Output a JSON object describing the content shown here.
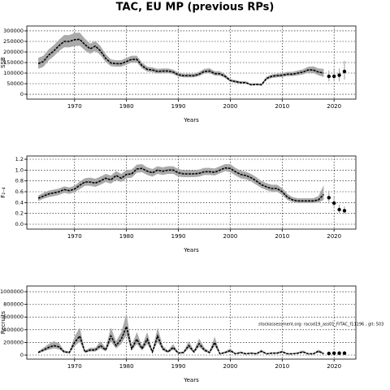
{
  "chart_data": [
    {
      "type": "line",
      "title": "TAC, EU MP (previous RPs)",
      "ylabel": "SSB",
      "xlabel": "Years",
      "xlim": [
        1960.8,
        2024.2
      ],
      "xticks": [
        1970,
        1980,
        1990,
        2000,
        2010,
        2020
      ],
      "ylim": [
        -23000,
        323000
      ],
      "yticks": [
        0,
        50000,
        100000,
        150000,
        200000,
        250000,
        300000
      ],
      "grid": true,
      "color": "#000000",
      "band_color": "#aaaaaa",
      "x": [
        1963,
        1964,
        1965,
        1966,
        1967,
        1968,
        1969,
        1970,
        1971,
        1972,
        1973,
        1974,
        1975,
        1976,
        1977,
        1978,
        1979,
        1980,
        1981,
        1982,
        1983,
        1984,
        1985,
        1986,
        1987,
        1988,
        1989,
        1990,
        1991,
        1992,
        1993,
        1994,
        1995,
        1996,
        1997,
        1998,
        1999,
        2000,
        2001,
        2002,
        2003,
        2004,
        2005,
        2006,
        2007,
        2008,
        2009,
        2010,
        2011,
        2012,
        2013,
        2014,
        2015,
        2016,
        2017,
        2018
      ],
      "values": [
        145000,
        155000,
        185000,
        205000,
        230000,
        250000,
        250000,
        258000,
        260000,
        235000,
        215000,
        228000,
        205000,
        170000,
        148000,
        145000,
        145000,
        155000,
        165000,
        165000,
        135000,
        118000,
        115000,
        108000,
        110000,
        110000,
        105000,
        92000,
        88000,
        88000,
        88000,
        95000,
        108000,
        110000,
        98000,
        97000,
        85000,
        65000,
        60000,
        55000,
        55000,
        45000,
        47000,
        45000,
        75000,
        85000,
        88000,
        90000,
        95000,
        95000,
        100000,
        105000,
        115000,
        115000,
        105000,
        100000
      ],
      "lower": [
        120000,
        130000,
        160000,
        180000,
        205000,
        222000,
        222000,
        228000,
        230000,
        208000,
        192000,
        205000,
        185000,
        152000,
        133000,
        131000,
        131000,
        140000,
        150000,
        150000,
        122000,
        107000,
        105000,
        98000,
        100000,
        100000,
        95000,
        83000,
        80000,
        80000,
        80000,
        86000,
        98000,
        100000,
        89000,
        88000,
        77000,
        59000,
        54000,
        50000,
        50000,
        41000,
        43000,
        41000,
        68000,
        77000,
        80000,
        82000,
        86000,
        86000,
        90000,
        94000,
        102000,
        100000,
        90000,
        82000
      ],
      "upper": [
        172000,
        182000,
        212000,
        232000,
        258000,
        280000,
        280000,
        290000,
        292000,
        263000,
        240000,
        252000,
        228000,
        190000,
        165000,
        161000,
        161000,
        172000,
        182000,
        182000,
        150000,
        131000,
        127000,
        120000,
        122000,
        122000,
        117000,
        102000,
        97000,
        97000,
        97000,
        106000,
        120000,
        123000,
        109000,
        108000,
        95000,
        72000,
        67000,
        61000,
        61000,
        50000,
        52000,
        50000,
        83000,
        94000,
        97000,
        100000,
        106000,
        106000,
        112000,
        118000,
        130000,
        132000,
        122000,
        120000
      ],
      "points": {
        "x": [
          2019,
          2020,
          2021,
          2022
        ],
        "values": [
          85000,
          85000,
          90000,
          108000
        ],
        "lower": [
          62000,
          60000,
          62000,
          70000
        ],
        "upper": [
          112000,
          115000,
          122000,
          158000
        ]
      }
    },
    {
      "type": "line",
      "ylabel": "F₂₋₄",
      "xlabel": "Years",
      "xlim": [
        1960.8,
        2024.2
      ],
      "xticks": [
        1970,
        1980,
        1990,
        2000,
        2010,
        2020
      ],
      "ylim": [
        -0.09,
        1.26
      ],
      "yticks": [
        {
          "value": 0,
          "label": "0.0"
        },
        0.2,
        0.4,
        0.6,
        0.8,
        {
          "value": 1,
          "label": "1.0"
        },
        1.2
      ],
      "grid": true,
      "color": "#000000",
      "band_color": "#aaaaaa",
      "x": [
        1963,
        1964,
        1965,
        1966,
        1967,
        1968,
        1969,
        1970,
        1971,
        1972,
        1973,
        1974,
        1975,
        1976,
        1977,
        1978,
        1979,
        1980,
        1981,
        1982,
        1983,
        1984,
        1985,
        1986,
        1987,
        1988,
        1989,
        1990,
        1991,
        1992,
        1993,
        1994,
        1995,
        1996,
        1997,
        1998,
        1999,
        2000,
        2001,
        2002,
        2003,
        2004,
        2005,
        2006,
        2007,
        2008,
        2009,
        2010,
        2011,
        2012,
        2013,
        2014,
        2015,
        2016,
        2017,
        2018
      ],
      "values": [
        0.48,
        0.52,
        0.56,
        0.58,
        0.6,
        0.64,
        0.62,
        0.65,
        0.72,
        0.78,
        0.78,
        0.76,
        0.8,
        0.85,
        0.82,
        0.9,
        0.85,
        0.92,
        0.93,
        1.02,
        1.03,
        0.98,
        0.95,
        1.0,
        0.98,
        1.0,
        1.0,
        0.95,
        0.93,
        0.93,
        0.93,
        0.94,
        0.97,
        0.97,
        0.96,
        1.0,
        1.04,
        1.03,
        0.97,
        0.92,
        0.9,
        0.86,
        0.8,
        0.73,
        0.69,
        0.66,
        0.66,
        0.6,
        0.5,
        0.45,
        0.43,
        0.43,
        0.43,
        0.43,
        0.45,
        0.55
      ],
      "lower": [
        0.43,
        0.47,
        0.5,
        0.52,
        0.54,
        0.58,
        0.56,
        0.59,
        0.65,
        0.71,
        0.71,
        0.69,
        0.73,
        0.78,
        0.75,
        0.82,
        0.78,
        0.85,
        0.86,
        0.95,
        0.96,
        0.91,
        0.88,
        0.93,
        0.91,
        0.93,
        0.93,
        0.88,
        0.87,
        0.87,
        0.87,
        0.88,
        0.91,
        0.91,
        0.9,
        0.94,
        0.98,
        0.96,
        0.9,
        0.85,
        0.83,
        0.79,
        0.73,
        0.67,
        0.63,
        0.6,
        0.6,
        0.54,
        0.45,
        0.41,
        0.39,
        0.39,
        0.39,
        0.39,
        0.4,
        0.45
      ],
      "upper": [
        0.53,
        0.58,
        0.62,
        0.64,
        0.66,
        0.7,
        0.68,
        0.71,
        0.79,
        0.85,
        0.86,
        0.84,
        0.88,
        0.93,
        0.9,
        0.98,
        0.93,
        1.0,
        1.01,
        1.1,
        1.11,
        1.05,
        1.02,
        1.07,
        1.05,
        1.07,
        1.07,
        1.02,
        1.0,
        1.0,
        1.0,
        1.01,
        1.04,
        1.04,
        1.03,
        1.07,
        1.11,
        1.11,
        1.04,
        0.99,
        0.97,
        0.93,
        0.87,
        0.8,
        0.76,
        0.73,
        0.73,
        0.67,
        0.56,
        0.5,
        0.48,
        0.48,
        0.48,
        0.48,
        0.52,
        0.72
      ],
      "points": {
        "x": [
          2019,
          2020,
          2021,
          2022
        ],
        "values": [
          0.49,
          0.39,
          0.27,
          0.25
        ],
        "lower": [
          0.38,
          0.3,
          0.21,
          0.19
        ],
        "upper": [
          0.62,
          0.52,
          0.36,
          0.33
        ]
      }
    },
    {
      "type": "line",
      "ylabel": "Recruits",
      "xlabel": "Years",
      "annotation": "stockassessment.org: racod19_ass01_FrTAC_f11196 , git: 503",
      "xlim": [
        1960.8,
        2024.2
      ],
      "xticks": [
        1970,
        1980,
        1990,
        2000,
        2010,
        2020
      ],
      "ylim": [
        -64000,
        1090000
      ],
      "yticks": [
        0,
        200000,
        400000,
        600000,
        800000,
        1000000
      ],
      "grid": true,
      "color": "#000000",
      "band_color": "#aaaaaa",
      "x": [
        1963,
        1964,
        1965,
        1966,
        1967,
        1968,
        1969,
        1970,
        1971,
        1972,
        1973,
        1974,
        1975,
        1976,
        1977,
        1978,
        1979,
        1980,
        1981,
        1982,
        1983,
        1984,
        1985,
        1986,
        1987,
        1988,
        1989,
        1990,
        1991,
        1992,
        1993,
        1994,
        1995,
        1996,
        1997,
        1998,
        1999,
        2000,
        2001,
        2002,
        2003,
        2004,
        2005,
        2006,
        2007,
        2008,
        2009,
        2010,
        2011,
        2012,
        2013,
        2014,
        2015,
        2016,
        2017,
        2018
      ],
      "values": [
        40000,
        80000,
        120000,
        150000,
        130000,
        50000,
        40000,
        200000,
        300000,
        50000,
        80000,
        80000,
        150000,
        80000,
        300000,
        150000,
        250000,
        450000,
        100000,
        250000,
        100000,
        250000,
        50000,
        300000,
        100000,
        50000,
        120000,
        30000,
        40000,
        150000,
        50000,
        180000,
        80000,
        40000,
        200000,
        20000,
        40000,
        70000,
        20000,
        40000,
        20000,
        30000,
        20000,
        60000,
        20000,
        30000,
        30000,
        50000,
        20000,
        20000,
        30000,
        50000,
        20000,
        20000,
        60000,
        20000
      ],
      "lower": [
        28000,
        56000,
        84000,
        105000,
        91000,
        35000,
        28000,
        140000,
        210000,
        35000,
        56000,
        56000,
        105000,
        56000,
        210000,
        105000,
        175000,
        315000,
        70000,
        175000,
        70000,
        175000,
        35000,
        210000,
        70000,
        35000,
        84000,
        21000,
        28000,
        105000,
        35000,
        126000,
        56000,
        28000,
        140000,
        14000,
        28000,
        49000,
        14000,
        28000,
        14000,
        21000,
        14000,
        42000,
        14000,
        21000,
        21000,
        35000,
        14000,
        14000,
        21000,
        35000,
        14000,
        14000,
        42000,
        12000
      ],
      "upper": [
        58000,
        116000,
        174000,
        218000,
        189000,
        73000,
        58000,
        290000,
        435000,
        73000,
        116000,
        116000,
        218000,
        116000,
        435000,
        218000,
        363000,
        653000,
        145000,
        363000,
        145000,
        363000,
        73000,
        435000,
        145000,
        73000,
        174000,
        44000,
        58000,
        218000,
        73000,
        261000,
        116000,
        58000,
        290000,
        29000,
        58000,
        102000,
        29000,
        58000,
        29000,
        44000,
        29000,
        87000,
        29000,
        44000,
        44000,
        73000,
        29000,
        29000,
        44000,
        73000,
        29000,
        29000,
        87000,
        40000
      ],
      "points": {
        "x": [
          2019,
          2020,
          2021,
          2022
        ],
        "values": [
          25000,
          30000,
          30000,
          30000
        ],
        "lower": [
          12000,
          14000,
          14000,
          14000
        ],
        "upper": [
          55000,
          60000,
          62000,
          62000
        ]
      }
    }
  ]
}
